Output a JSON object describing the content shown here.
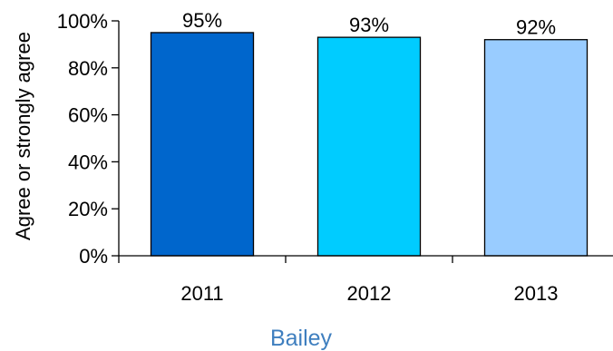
{
  "chart_data": {
    "type": "bar",
    "categories": [
      "2011",
      "2012",
      "2013"
    ],
    "values": [
      95,
      93,
      92
    ],
    "data_labels": [
      "95%",
      "93%",
      "92%"
    ],
    "bar_colors": [
      "#0066cc",
      "#00ccff",
      "#99ccff"
    ],
    "title": "",
    "xlabel": "Bailey",
    "ylabel": "Agree or strongly agree",
    "ylim": [
      0,
      100
    ],
    "y_ticks": [
      0,
      20,
      40,
      60,
      80,
      100
    ],
    "y_tick_labels": [
      "0%",
      "20%",
      "40%",
      "60%",
      "80%",
      "100%"
    ],
    "grid": false,
    "legend": "none"
  }
}
